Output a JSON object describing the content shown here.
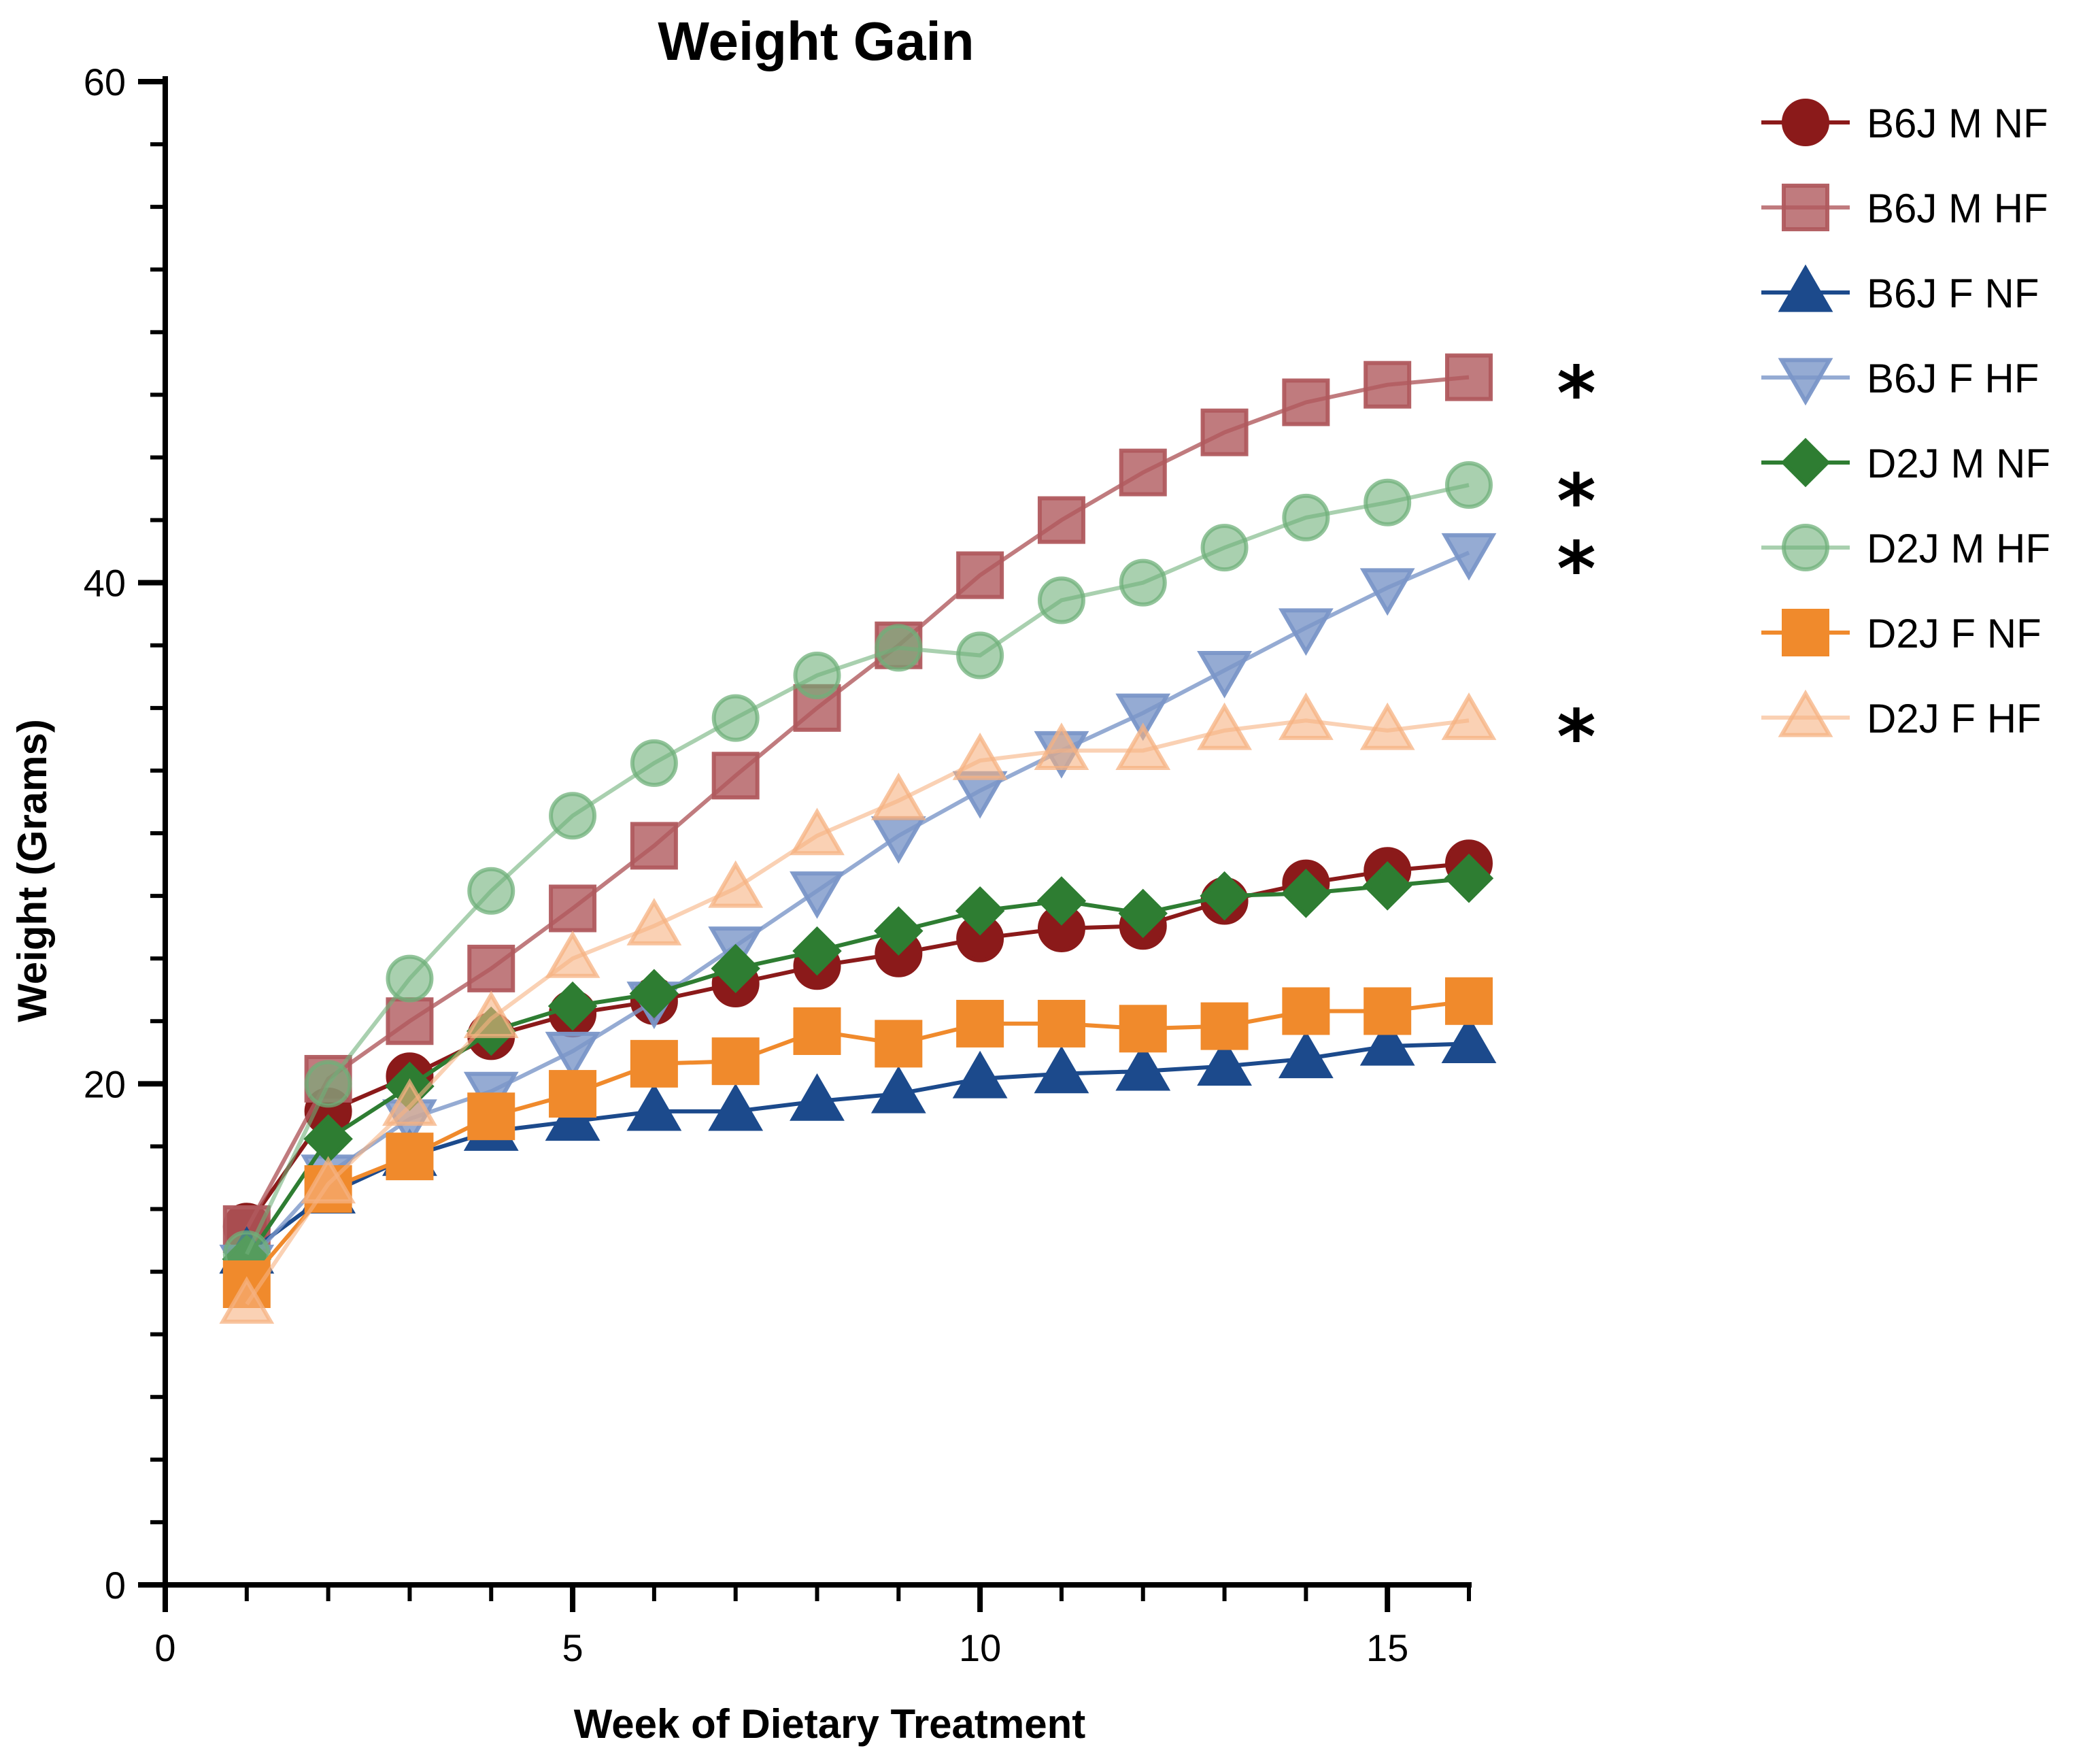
{
  "chart_data": {
    "type": "line",
    "title": "Weight Gain",
    "xlabel": "Week of Dietary Treatment",
    "ylabel": "Weight (Grams)",
    "xlim": [
      0,
      16
    ],
    "ylim": [
      0,
      60
    ],
    "x_ticks": [
      0,
      5,
      10,
      15
    ],
    "y_ticks": [
      0,
      20,
      40,
      60
    ],
    "grid": false,
    "legend_position": "right",
    "x": [
      1,
      2,
      3,
      4,
      5,
      6,
      7,
      8,
      9,
      10,
      11,
      12,
      13,
      14,
      15,
      16
    ],
    "series": [
      {
        "name": "B6J M NF",
        "color": "#8b1a1a",
        "opacity": 1.0,
        "marker": "circle",
        "values": [
          14.3,
          18.9,
          20.3,
          21.9,
          22.8,
          23.3,
          24.0,
          24.7,
          25.2,
          25.8,
          26.2,
          26.3,
          27.3,
          28.0,
          28.5,
          28.8
        ]
      },
      {
        "name": "B6J M HF",
        "color": "#b05a5e",
        "opacity": 0.8,
        "marker": "square",
        "values": [
          14.2,
          20.2,
          22.5,
          24.6,
          27.0,
          29.5,
          32.3,
          35.0,
          37.5,
          40.3,
          42.5,
          44.4,
          46.0,
          47.2,
          47.9,
          48.2
        ]
      },
      {
        "name": "B6J F NF",
        "color": "#1c4a8c",
        "opacity": 1.0,
        "marker": "triangle-up",
        "values": [
          13.2,
          15.6,
          17.1,
          18.1,
          18.5,
          18.9,
          18.9,
          19.3,
          19.6,
          20.2,
          20.4,
          20.5,
          20.7,
          21.0,
          21.5,
          21.6
        ]
      },
      {
        "name": "B6J F HF",
        "color": "#7a96c8",
        "opacity": 0.8,
        "marker": "triangle-down",
        "values": [
          12.8,
          16.4,
          18.6,
          19.7,
          21.3,
          23.3,
          25.5,
          27.7,
          29.9,
          31.7,
          33.3,
          34.8,
          36.5,
          38.2,
          39.8,
          41.2
        ]
      },
      {
        "name": "D2J M NF",
        "color": "#2e7d32",
        "opacity": 1.0,
        "marker": "diamond",
        "values": [
          13.0,
          17.8,
          19.9,
          22.1,
          23.1,
          23.6,
          24.6,
          25.3,
          26.1,
          26.9,
          27.3,
          26.8,
          27.5,
          27.6,
          27.9,
          28.2
        ]
      },
      {
        "name": "D2J M HF",
        "color": "#6fb07a",
        "opacity": 0.6,
        "marker": "circle",
        "values": [
          13.2,
          20.0,
          24.2,
          27.7,
          30.7,
          32.8,
          34.6,
          36.3,
          37.4,
          37.1,
          39.3,
          40.0,
          41.4,
          42.6,
          43.2,
          43.9
        ]
      },
      {
        "name": "D2J F NF",
        "color": "#f08a2c",
        "opacity": 1.0,
        "marker": "square",
        "values": [
          12.0,
          15.8,
          17.1,
          18.7,
          19.6,
          20.8,
          20.9,
          22.1,
          21.6,
          22.4,
          22.4,
          22.2,
          22.3,
          22.9,
          22.9,
          23.3
        ]
      },
      {
        "name": "D2J F HF",
        "color": "#f6b282",
        "opacity": 0.6,
        "marker": "triangle-up",
        "values": [
          11.2,
          16.0,
          19.1,
          22.6,
          25.0,
          26.3,
          27.8,
          29.9,
          31.3,
          32.9,
          33.3,
          33.3,
          34.1,
          34.5,
          34.1,
          34.5
        ]
      }
    ],
    "annotations": [
      {
        "text": "*",
        "series": "B6J M HF",
        "y": 48.2
      },
      {
        "text": "*",
        "series": "D2J M HF",
        "y": 43.9
      },
      {
        "text": "*",
        "series": "B6J F HF",
        "y": 41.2
      },
      {
        "text": "*",
        "series": "D2J F HF",
        "y": 34.5
      }
    ]
  }
}
